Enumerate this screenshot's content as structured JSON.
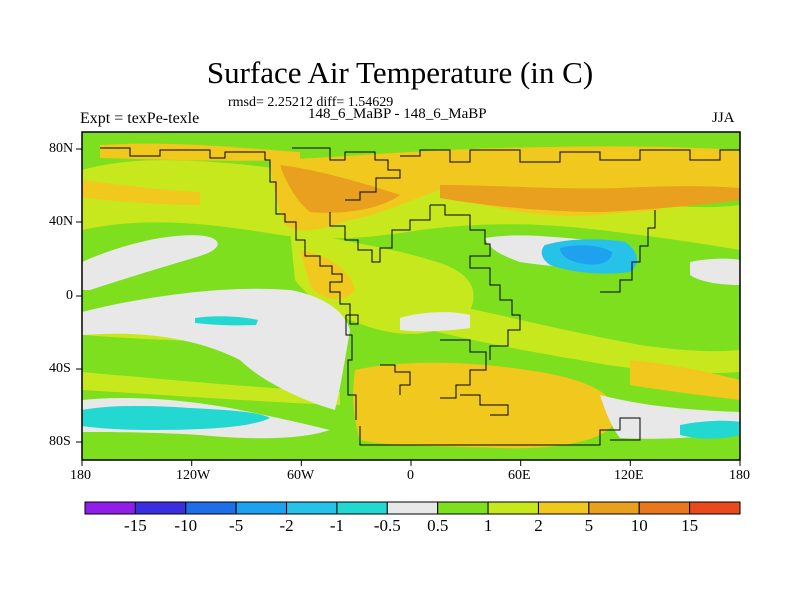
{
  "title": "Surface Air Temperature (in C)",
  "stats": "rmsd= 2.25212 diff= 1.54629",
  "subtitle": "148_6_MaBP - 148_6_MaBP",
  "left_label": "Expt = texPe-texle",
  "right_label": "JJA",
  "axes": {
    "lon_ticks": [
      "180",
      "120W",
      "60W",
      "0",
      "60E",
      "120E",
      "180"
    ],
    "lat_ticks": [
      "80N",
      "40N",
      "0",
      "40S",
      "80S"
    ]
  },
  "colorbar": {
    "labels": [
      "-15",
      "-10",
      "-5",
      "-2",
      "-1",
      "-0.5",
      "0.5",
      "1",
      "2",
      "5",
      "10",
      "15"
    ],
    "colors": [
      "#8f1ee8",
      "#3a2fe0",
      "#1e6ee8",
      "#1ea2f0",
      "#26c2e8",
      "#22d8d0",
      "#e8e8e8",
      "#7ddf1e",
      "#c8e81e",
      "#f0c81e",
      "#e8a01e",
      "#e8781e",
      "#e84a1e"
    ]
  }
}
